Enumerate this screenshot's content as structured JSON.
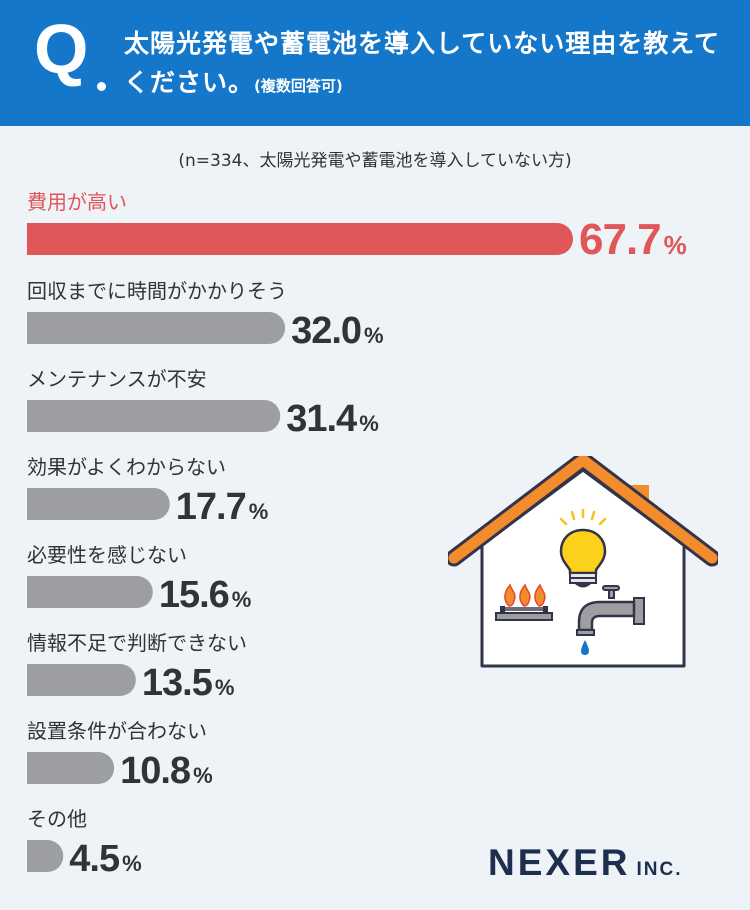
{
  "header": {
    "q_mark": "Q",
    "question": "太陽光発電や蓄電池を導入していない理由を教えてください。",
    "note": "(複数回答可)"
  },
  "sample_note": "(n=334、太陽光発電や蓄電池を導入していない方)",
  "colors": {
    "header": "#1577c9",
    "highlight": "#e05659",
    "bar": "#9d9ea2",
    "text": "#333333"
  },
  "illustration": {
    "icon": "house-energy-icon"
  },
  "logo": {
    "name": "NEXER",
    "suffix": "INC."
  },
  "chart_data": {
    "type": "bar",
    "orientation": "horizontal",
    "unit": "%",
    "categories": [
      "費用が高い",
      "回収までに時間がかかりそう",
      "メンテナンスが不安",
      "効果がよくわからない",
      "必要性を感じない",
      "情報不足で判断できない",
      "設置条件が合わない",
      "その他"
    ],
    "values": [
      67.7,
      32.0,
      31.4,
      17.7,
      15.6,
      13.5,
      10.8,
      4.5
    ],
    "value_labels": [
      "67.7",
      "32.0",
      "31.4",
      "17.7",
      "15.6",
      "13.5",
      "10.8",
      "4.5"
    ],
    "highlight_index": 0,
    "xlim": [
      0,
      67.7
    ],
    "grid": false,
    "legend": "none"
  }
}
